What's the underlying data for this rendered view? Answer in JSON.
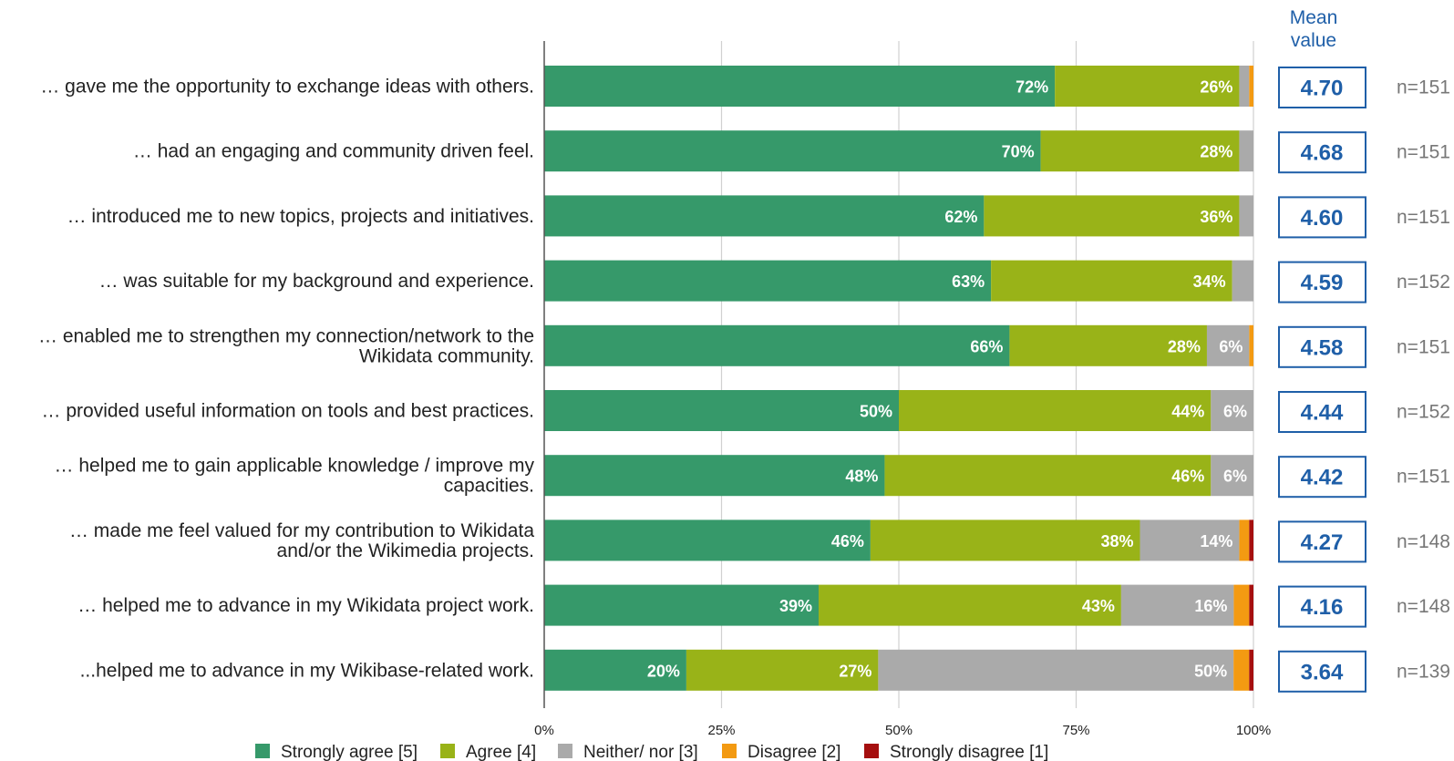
{
  "chart_data": {
    "type": "bar",
    "orientation": "horizontal",
    "stacked": true,
    "percent_stacked": true,
    "categories": [
      [
        "… gave me the opportunity to exchange ideas with others."
      ],
      [
        "… had an engaging and community driven feel."
      ],
      [
        "… introduced me to new topics, projects and initiatives."
      ],
      [
        "… was suitable for my background and experience."
      ],
      [
        "… enabled me to strengthen my connection/network to the",
        "Wikidata community."
      ],
      [
        "… provided useful information on tools and best practices."
      ],
      [
        "… helped me to gain applicable knowledge / improve my",
        "capacities."
      ],
      [
        "… made me feel valued for my contribution to Wikidata",
        "and/or the Wikimedia projects."
      ],
      [
        "… helped me to advance in my Wikidata project work."
      ],
      [
        "...helped me to advance in my Wikibase-related work."
      ]
    ],
    "series": [
      {
        "name": "Strongly agree [5]",
        "color": "#36996a",
        "values": [
          72,
          70,
          62,
          63,
          66,
          50,
          48,
          46,
          39,
          20
        ],
        "labels": [
          "72%",
          "70%",
          "62%",
          "63%",
          "66%",
          "50%",
          "48%",
          "46%",
          "39%",
          "20%"
        ]
      },
      {
        "name": "Agree [4]",
        "color": "#99b318",
        "values": [
          26,
          28,
          36,
          34,
          28,
          44,
          46,
          38,
          43,
          27
        ],
        "labels": [
          "26%",
          "28%",
          "36%",
          "34%",
          "28%",
          "44%",
          "46%",
          "38%",
          "43%",
          "27%"
        ]
      },
      {
        "name": "Neither/ nor [3]",
        "color": "#aaaaaa",
        "values": [
          1.4,
          2,
          2,
          3,
          6,
          6,
          6,
          14,
          16,
          50
        ],
        "labels": [
          "",
          "",
          "",
          "",
          "6%",
          "6%",
          "6%",
          "14%",
          "16%",
          "50%"
        ]
      },
      {
        "name": "Disagree [2]",
        "color": "#f39a12",
        "values": [
          0.6,
          0,
          0,
          0,
          0.6,
          0,
          0,
          1.4,
          2.2,
          2.2
        ],
        "labels": [
          "",
          "",
          "",
          "",
          "",
          "",
          "",
          "",
          "",
          ""
        ]
      },
      {
        "name": "Strongly disagree [1]",
        "color": "#a50f0f",
        "values": [
          0,
          0,
          0,
          0,
          0,
          0,
          0,
          0.6,
          0.6,
          0.6
        ],
        "labels": [
          "",
          "",
          "",
          "",
          "",
          "",
          "",
          "",
          "",
          ""
        ]
      }
    ],
    "x_ticks": [
      "0%",
      "25%",
      "50%",
      "75%",
      "100%"
    ],
    "xlim": [
      0,
      100
    ],
    "grid": true,
    "legend_position": "bottom",
    "mean_header": [
      "Mean",
      "value"
    ],
    "mean_values": [
      "4.70",
      "4.68",
      "4.60",
      "4.59",
      "4.58",
      "4.44",
      "4.42",
      "4.27",
      "4.16",
      "3.64"
    ],
    "n_counts": [
      "n=151",
      "n=151",
      "n=151",
      "n=152",
      "n=151",
      "n=152",
      "n=151",
      "n=148",
      "n=148",
      "n=139"
    ]
  }
}
